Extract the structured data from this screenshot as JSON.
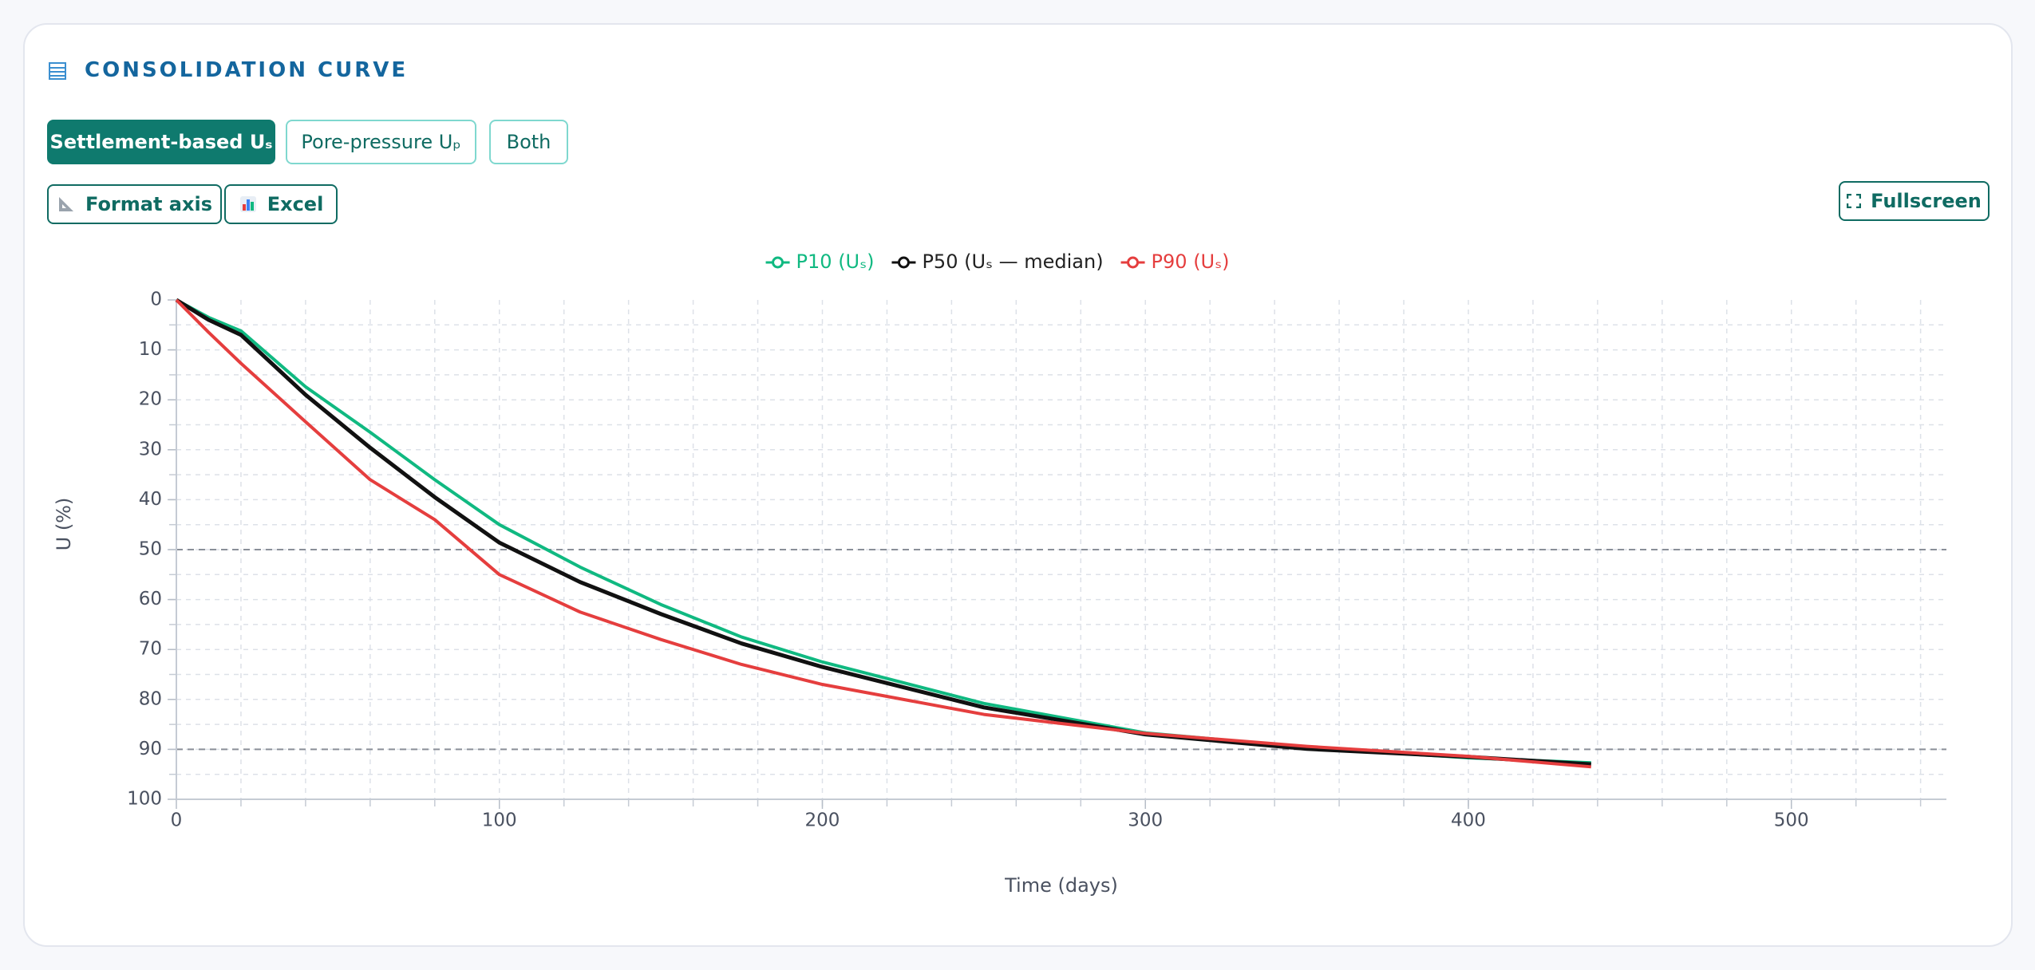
{
  "header": {
    "title": "CONSOLIDATION CURVE"
  },
  "toggles": [
    "Settlement-based Uₛ",
    "Pore-pressure Uₚ",
    "Both"
  ],
  "active_toggle": 0,
  "tools": [
    "Format axis",
    "Excel"
  ],
  "fullscreen": "Fullscreen",
  "chart_data": {
    "type": "line",
    "xlabel": "Time (days)",
    "ylabel": "U (%)",
    "x": [
      0,
      10,
      20,
      40,
      60,
      80,
      100,
      125,
      150,
      175,
      200,
      250,
      300,
      350,
      400,
      438
    ],
    "series": [
      {
        "name": "P10 (Uₛ)",
        "color": "#10b981",
        "values": [
          0,
          3.5,
          6.2,
          17.4,
          26.5,
          36,
          45,
          53.5,
          61,
          67.5,
          72.5,
          80.8,
          86.7,
          89.6,
          91.7,
          92.7
        ]
      },
      {
        "name": "P50 (Uₛ — median)",
        "color": "#111111",
        "values": [
          0,
          4,
          7,
          19,
          29.6,
          39.5,
          48.6,
          56.5,
          62.9,
          68.8,
          73.5,
          81.6,
          87,
          89.9,
          91.5,
          93
        ]
      },
      {
        "name": "P90 (Uₛ)",
        "color": "#e53e3e",
        "values": [
          0,
          6.5,
          12.7,
          24.4,
          36,
          44,
          55,
          62.5,
          68,
          73,
          77,
          83,
          86.8,
          89.4,
          91.4,
          93.5
        ]
      }
    ],
    "xlim": [
      0,
      548
    ],
    "ylim": [
      0,
      100
    ],
    "y_reversed": true,
    "xticks": [
      0,
      100,
      200,
      300,
      400,
      500
    ],
    "yticks": [
      0,
      10,
      20,
      30,
      40,
      50,
      60,
      70,
      80,
      90,
      100
    ],
    "x_minor_step": 20,
    "y_minor_step": 5,
    "reference_lines": [
      50,
      90
    ],
    "grid": true,
    "legend": "top"
  }
}
